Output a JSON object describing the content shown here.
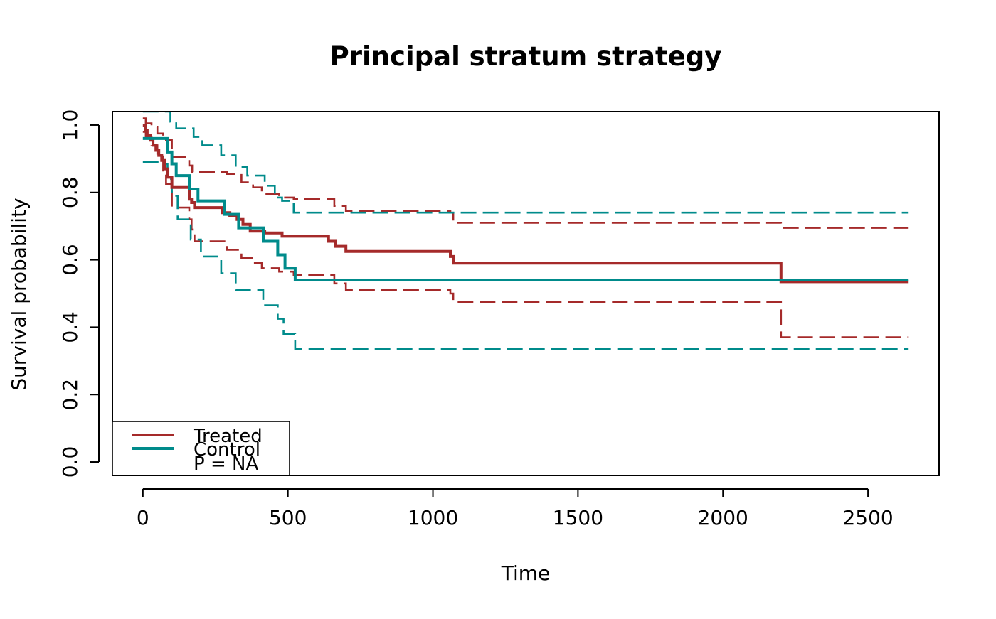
{
  "chart_data": {
    "type": "line",
    "title": "Principal stratum strategy",
    "xlabel": "Time",
    "ylabel": "Survival probability",
    "xlim": [
      -105,
      2745
    ],
    "ylim": [
      -0.04,
      1.04
    ],
    "x_ticks": [
      0,
      500,
      1000,
      1500,
      2000,
      2500
    ],
    "x_tick_labels": [
      "0",
      "500",
      "1000",
      "1500",
      "2000",
      "2500"
    ],
    "y_ticks": [
      0.0,
      0.2,
      0.4,
      0.6,
      0.8,
      1.0
    ],
    "y_tick_labels": [
      "0.0",
      "0.2",
      "0.4",
      "0.6",
      "0.8",
      "1.0"
    ],
    "grid": false,
    "legend": {
      "position": "bottom-left",
      "entries": [
        "Treated",
        "Control"
      ],
      "note": "P = NA"
    },
    "series": [
      {
        "name": "Treated",
        "color": "#A52A2A",
        "role": "estimate",
        "x": [
          0,
          8,
          15,
          25,
          35,
          45,
          55,
          65,
          75,
          85,
          100,
          160,
          168,
          178,
          275,
          300,
          325,
          345,
          370,
          420,
          480,
          640,
          665,
          700,
          1060,
          1070,
          2200,
          2640
        ],
        "y": [
          1.0,
          0.985,
          0.97,
          0.955,
          0.94,
          0.925,
          0.91,
          0.895,
          0.87,
          0.845,
          0.815,
          0.78,
          0.77,
          0.755,
          0.74,
          0.73,
          0.72,
          0.705,
          0.685,
          0.68,
          0.67,
          0.655,
          0.64,
          0.625,
          0.61,
          0.59,
          0.535,
          0.535
        ]
      },
      {
        "name": "Treated",
        "color": "#A52A2A",
        "role": "upper confidence limit",
        "x": [
          0,
          10,
          30,
          50,
          70,
          100,
          160,
          170,
          290,
          340,
          380,
          410,
          470,
          520,
          660,
          700,
          1060,
          1070,
          2200,
          2640
        ],
        "y": [
          1.02,
          1.005,
          0.995,
          0.975,
          0.955,
          0.905,
          0.88,
          0.86,
          0.855,
          0.83,
          0.815,
          0.795,
          0.785,
          0.78,
          0.76,
          0.745,
          0.74,
          0.71,
          0.695,
          0.695
        ]
      },
      {
        "name": "Treated",
        "color": "#A52A2A",
        "role": "lower confidence limit",
        "x": [
          0,
          10,
          30,
          50,
          70,
          80,
          100,
          160,
          168,
          178,
          290,
          340,
          380,
          410,
          470,
          520,
          660,
          700,
          1060,
          1070,
          2200,
          2640
        ],
        "y": [
          0.98,
          0.965,
          0.94,
          0.915,
          0.865,
          0.825,
          0.755,
          0.72,
          0.69,
          0.655,
          0.63,
          0.605,
          0.59,
          0.575,
          0.565,
          0.555,
          0.53,
          0.51,
          0.5,
          0.475,
          0.37,
          0.37
        ]
      },
      {
        "name": "Control",
        "color": "#008B8B",
        "role": "estimate",
        "x": [
          0,
          85,
          100,
          115,
          125,
          160,
          190,
          280,
          330,
          415,
          465,
          490,
          525,
          2640
        ],
        "y": [
          0.96,
          0.92,
          0.885,
          0.85,
          0.85,
          0.81,
          0.775,
          0.735,
          0.695,
          0.655,
          0.615,
          0.575,
          0.54,
          0.54
        ]
      },
      {
        "name": "Control",
        "color": "#008B8B",
        "role": "upper confidence limit",
        "x": [
          0,
          95,
          115,
          175,
          205,
          270,
          320,
          360,
          420,
          455,
          480,
          520,
          2640
        ],
        "y": [
          1.04,
          1.01,
          0.99,
          0.965,
          0.94,
          0.91,
          0.875,
          0.85,
          0.82,
          0.785,
          0.775,
          0.74,
          0.74
        ]
      },
      {
        "name": "Control",
        "color": "#008B8B",
        "role": "lower confidence limit",
        "x": [
          0,
          70,
          85,
          100,
          120,
          165,
          200,
          270,
          320,
          415,
          465,
          485,
          525,
          2640
        ],
        "y": [
          0.89,
          0.885,
          0.84,
          0.79,
          0.72,
          0.66,
          0.61,
          0.56,
          0.51,
          0.465,
          0.425,
          0.38,
          0.335,
          0.335
        ]
      }
    ]
  }
}
